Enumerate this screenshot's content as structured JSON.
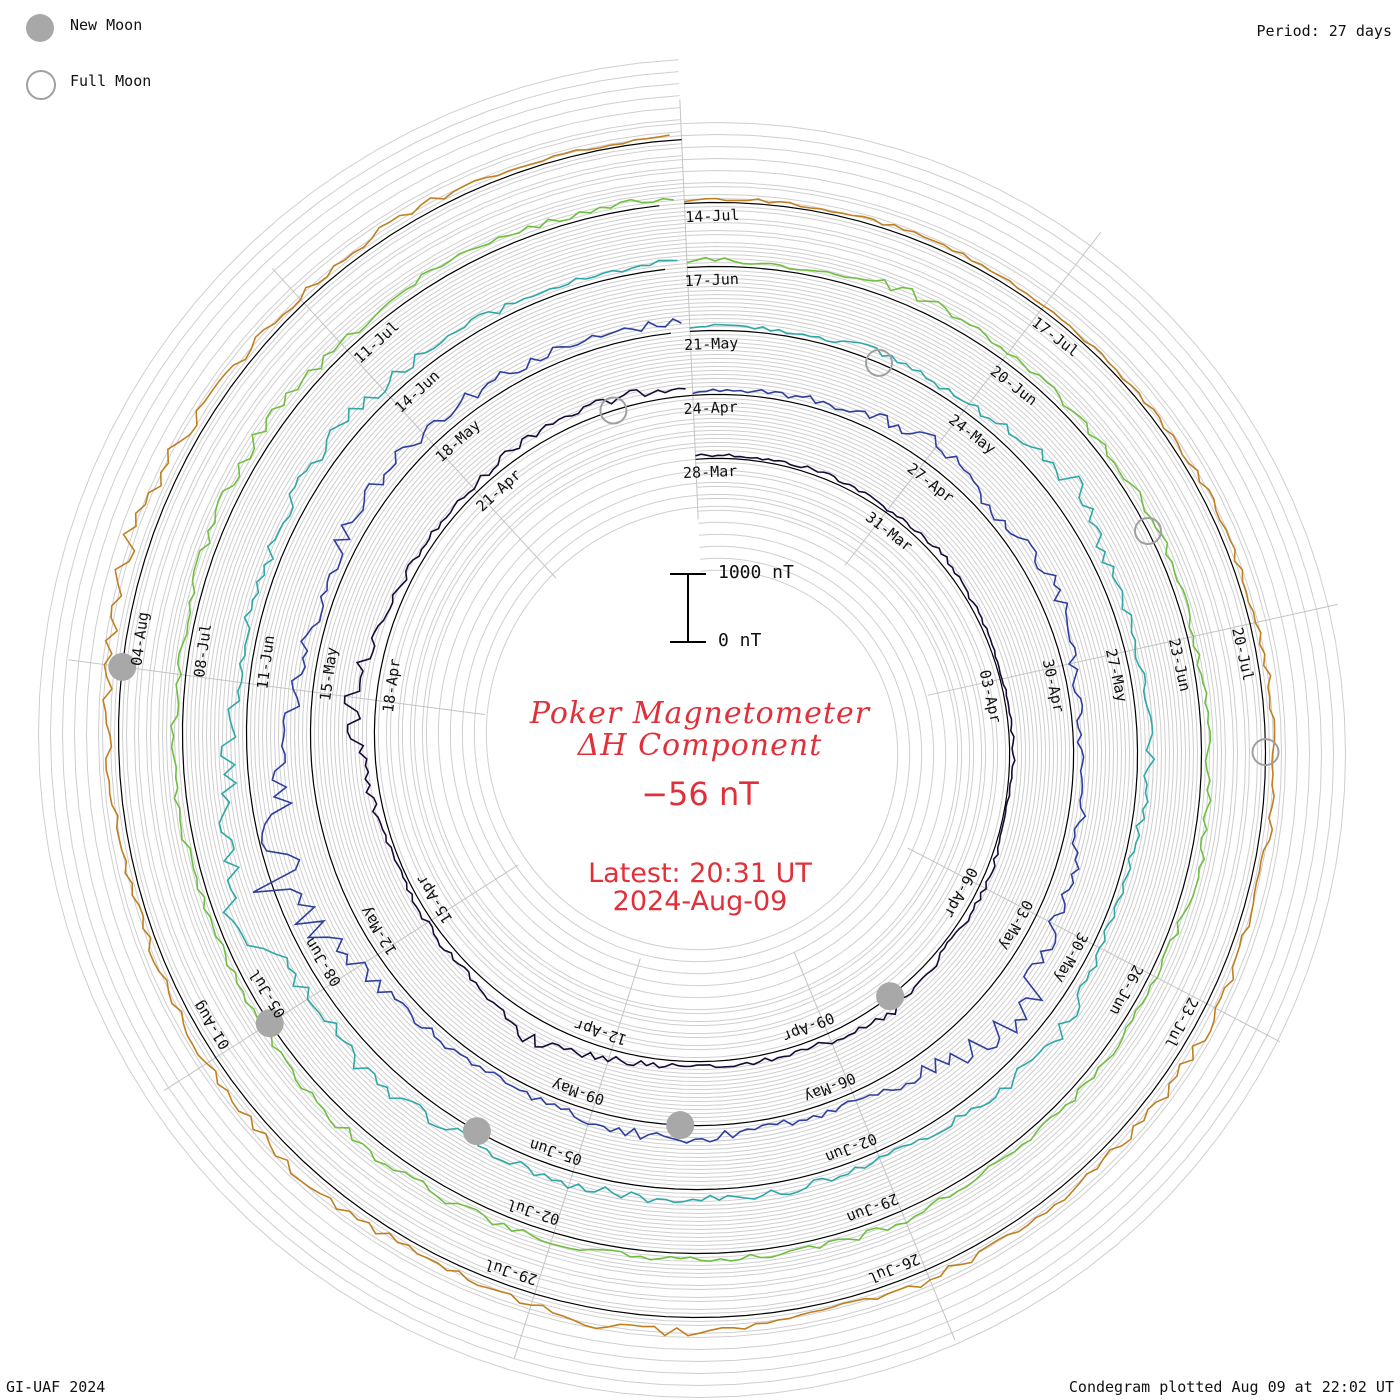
{
  "legend": {
    "new_moon": "New Moon",
    "full_moon": "Full Moon",
    "new_moon_color": "#a8a8a8",
    "full_moon_color": "#ffffff"
  },
  "period": "Period: 27 days",
  "footer": {
    "credit": "GI-UAF 2024",
    "plotted": "Condegram plotted Aug 09 at 22:02 UT"
  },
  "title": {
    "line1": "Poker Magnetometer",
    "line2": "ΔH Component",
    "current_value": "−56 nT",
    "latest": "Latest: 20:31 UT",
    "latest_date": "2024-Aug-09",
    "color": "#e0303a"
  },
  "scale_bar": {
    "top_label": "1000 nT",
    "bottom_label": "0 nT"
  },
  "chart_data": {
    "type": "line",
    "plot_style": "condegram spiral (polar, 27-day period)",
    "units": "nT",
    "period_days": 27,
    "scale_bar_nT": [
      0,
      1000
    ],
    "cycles": [
      {
        "start_date": "2024-03-28",
        "color": "#1a0a3a",
        "date_labels": [
          "28-Mar",
          "31-Mar",
          "03-Apr",
          "06-Apr",
          "09-Apr",
          "12-Apr",
          "15-Apr",
          "18-Apr",
          "21-Apr"
        ]
      },
      {
        "start_date": "2024-04-24",
        "color": "#2e3fa0",
        "date_labels": [
          "24-Apr",
          "27-Apr",
          "30-Apr",
          "03-May",
          "06-May",
          "09-May",
          "12-May",
          "15-May",
          "18-May"
        ]
      },
      {
        "start_date": "2024-05-21",
        "color": "#2ea8a8",
        "date_labels": [
          "21-May",
          "24-May",
          "27-May",
          "30-May",
          "02-Jun",
          "05-Jun",
          "08-Jun",
          "11-Jun",
          "14-Jun"
        ]
      },
      {
        "start_date": "2024-06-17",
        "color": "#70c040",
        "date_labels": [
          "17-Jun",
          "20-Jun",
          "23-Jun",
          "26-Jun",
          "29-Jun",
          "02-Jul",
          "05-Jul",
          "08-Jul",
          "11-Jul"
        ]
      },
      {
        "start_date": "2024-07-14",
        "color": "#c08020",
        "date_labels": [
          "14-Jul",
          "17-Jul",
          "20-Jul",
          "23-Jul",
          "26-Jul",
          "29-Jul",
          "01-Aug",
          "04-Aug"
        ]
      }
    ],
    "series_values": [
      {
        "cycle": 1,
        "values": [
          -60,
          -40,
          -80,
          -50,
          -100,
          -50,
          -30,
          -60,
          -20,
          -90,
          -60,
          -200,
          -120,
          -80,
          -60,
          -150,
          -300,
          -120,
          -80,
          -60,
          -150,
          -400,
          -120,
          -100,
          -80,
          -200,
          -150
        ]
      },
      {
        "cycle": 2,
        "values": [
          -50,
          -80,
          -150,
          -300,
          -100,
          -300,
          -150,
          -100,
          -200,
          -350,
          -600,
          -300,
          -150,
          -100,
          -200,
          -150,
          -100,
          -150,
          -300,
          -900,
          -500,
          -250,
          -150,
          -300,
          -250,
          -200,
          -150
        ]
      },
      {
        "cycle": 3,
        "values": [
          -80,
          -60,
          -150,
          -100,
          -400,
          -200,
          -150,
          -200,
          -80,
          -100,
          -300,
          -150,
          -100,
          -150,
          -150,
          -200,
          -150,
          -300,
          -200,
          -600,
          -300,
          -200,
          -150,
          -300,
          -200,
          -150,
          -100
        ]
      },
      {
        "cycle": 4,
        "values": [
          -100,
          -60,
          -200,
          -150,
          -100,
          -150,
          -80,
          -100,
          -150,
          -100,
          -120,
          -80,
          -150,
          -100,
          -80,
          -120,
          -150,
          -200,
          -100,
          -80,
          -150,
          -100,
          -150,
          -200,
          -120,
          -150,
          -100
        ]
      },
      {
        "cycle": 5,
        "values": [
          -40,
          -60,
          -80,
          -50,
          -60,
          -100,
          -80,
          -150,
          -100,
          -200,
          -150,
          -120,
          -150,
          -100,
          -250,
          -150,
          -100,
          -200,
          -150,
          -100,
          -120,
          -200,
          -300,
          -150,
          -100,
          -150,
          -56
        ]
      }
    ],
    "new_moon_dates": [
      "2024-04-08",
      "2024-05-08",
      "2024-06-06",
      "2024-07-05",
      "2024-08-04"
    ],
    "full_moon_dates": [
      "2024-04-23",
      "2024-05-23",
      "2024-06-22",
      "2024-07-21"
    ]
  }
}
